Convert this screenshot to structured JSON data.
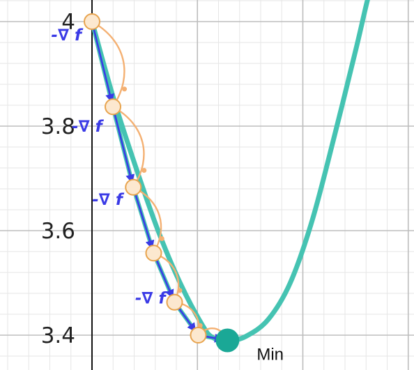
{
  "chart_data": {
    "type": "line",
    "title": "",
    "xlabel": "",
    "ylabel": "",
    "x_range": [
      0,
      6.1
    ],
    "ylim": [
      3.35,
      4.05
    ],
    "y_ticks": [
      "4",
      "3.8",
      "3.6",
      "3.4"
    ],
    "grid": true,
    "colors": {
      "curve": "#45c3b2",
      "steps": "#3a3ae6",
      "step_arcs": "#f4b072",
      "point_fill": "#fce8cf",
      "point_stroke": "#e8a44e",
      "minimum": "#1aa896",
      "axis": "#111111"
    },
    "curve": {
      "x": [
        0,
        0.4,
        0.8,
        1.2,
        1.6,
        2.0,
        2.2,
        2.5,
        2.8,
        3.2,
        3.6,
        4.0,
        4.4,
        4.8,
        5.0,
        5.2
      ],
      "y": [
        4.0,
        3.85,
        3.72,
        3.6,
        3.5,
        3.42,
        3.395,
        3.39,
        3.398,
        3.43,
        3.5,
        3.62,
        3.78,
        3.95,
        4.04,
        4.12
      ]
    },
    "descent_points": {
      "x": [
        0.0,
        0.38,
        0.75,
        1.12,
        1.5,
        1.93
      ],
      "y": [
        4.0,
        3.837,
        3.683,
        3.557,
        3.463,
        3.4
      ]
    },
    "minimum_point": {
      "x": 2.46,
      "y": 3.39
    },
    "gradient_labels": [
      "-∇ f",
      "-∇ f",
      "-∇ f",
      "-∇ f"
    ],
    "minimum_label": "Min"
  }
}
